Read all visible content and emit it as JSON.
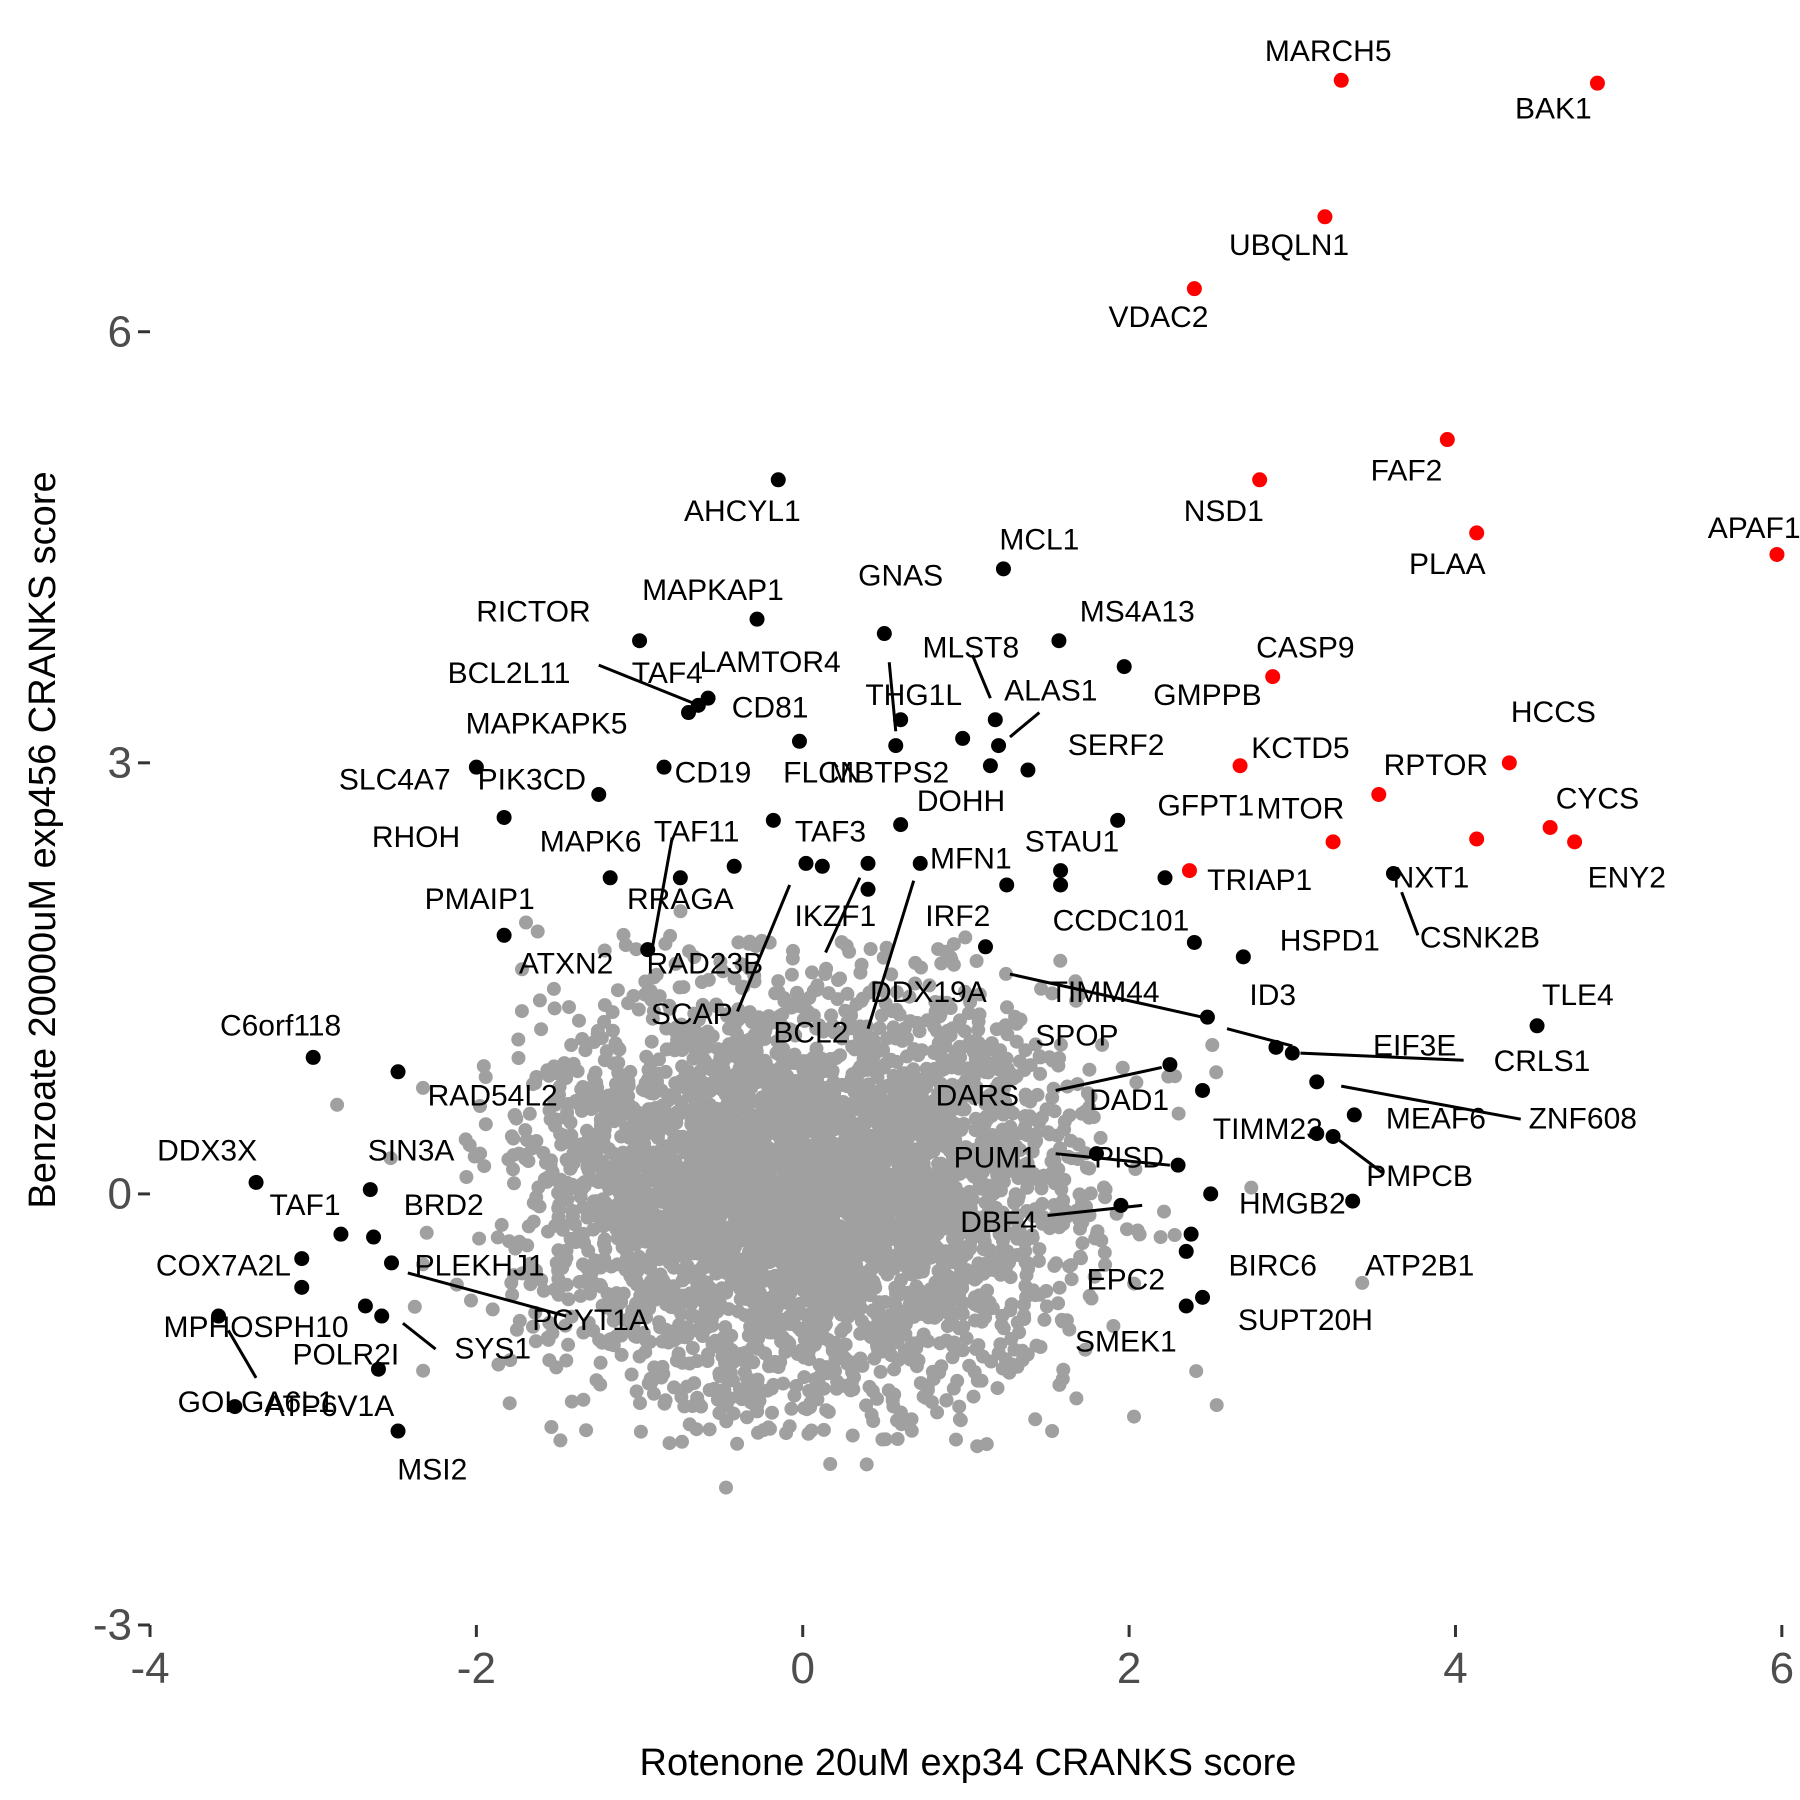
{
  "chart_data": {
    "type": "scatter",
    "title": "",
    "xlabel": "Rotenone 20uM exp34 CRANKS score",
    "ylabel": "Benzoate 20000uM exp456 CRANKS score",
    "xlim": [
      -4,
      6.05
    ],
    "ylim": [
      -3,
      8.1
    ],
    "x_ticks": [
      -4,
      -2,
      0,
      2,
      4,
      6
    ],
    "y_ticks": [
      -3,
      0,
      3,
      6
    ],
    "x_tick_labels": [
      "-4",
      "-2",
      "0",
      "2",
      "4",
      "6"
    ],
    "y_tick_labels": [
      "-3",
      "0",
      "3",
      "6"
    ],
    "grid": false,
    "background_cloud": {
      "color": "#a0a0a0",
      "description_count": 12000,
      "center": [
        0,
        0
      ],
      "sd": [
        0.82,
        0.68
      ]
    },
    "series": [
      {
        "color": "#ff0000",
        "points": [
          {
            "label": "MARCH5",
            "x": 3.3,
            "y": 7.75,
            "lx": 3.22,
            "ly": 7.95
          },
          {
            "label": "BAK1",
            "x": 4.87,
            "y": 7.73,
            "lx": 4.6,
            "ly": 7.55
          },
          {
            "label": "UBQLN1",
            "x": 3.2,
            "y": 6.8,
            "lx": 2.98,
            "ly": 6.6
          },
          {
            "label": "VDAC2",
            "x": 2.4,
            "y": 6.3,
            "lx": 2.18,
            "ly": 6.1
          },
          {
            "label": "FAF2",
            "x": 3.95,
            "y": 5.25,
            "lx": 3.7,
            "ly": 5.03
          },
          {
            "label": "NSD1",
            "x": 2.8,
            "y": 4.97,
            "lx": 2.58,
            "ly": 4.75
          },
          {
            "label": "PLAA",
            "x": 4.13,
            "y": 4.6,
            "lx": 3.95,
            "ly": 4.38
          },
          {
            "label": "APAF1",
            "x": 5.97,
            "y": 4.45,
            "lx": 5.83,
            "ly": 4.63
          },
          {
            "label": "CASP9",
            "x": 2.88,
            "y": 3.6,
            "lx": 3.08,
            "ly": 3.8
          },
          {
            "label": "KCTD5",
            "x": 2.68,
            "y": 2.98,
            "lx": 3.05,
            "ly": 3.1
          },
          {
            "label": "RPTOR",
            "x": 3.53,
            "y": 2.78,
            "lx": 3.88,
            "ly": 2.98
          },
          {
            "label": "HCCS",
            "x": 4.33,
            "y": 3.0,
            "lx": 4.6,
            "ly": 3.35
          },
          {
            "label": "MTOR",
            "x": 3.25,
            "y": 2.45,
            "lx": 3.05,
            "ly": 2.68
          },
          {
            "label": "CYCS",
            "x": 4.58,
            "y": 2.55,
            "lx": 4.87,
            "ly": 2.75
          },
          {
            "label": "ENY2",
            "x": 4.73,
            "y": 2.45,
            "lx": 5.05,
            "ly": 2.2
          },
          {
            "label": "NXT1",
            "x": 4.13,
            "y": 2.47,
            "lx": 3.85,
            "ly": 2.2
          },
          {
            "label": "TRIAP1",
            "x": 2.37,
            "y": 2.25,
            "lx": 2.8,
            "ly": 2.18
          }
        ]
      },
      {
        "color": "#000000",
        "points": [
          {
            "label": "AHCYL1",
            "x": -0.15,
            "y": 4.97,
            "lx": -0.37,
            "ly": 4.75
          },
          {
            "label": "MCL1",
            "x": 1.23,
            "y": 4.35,
            "lx": 1.45,
            "ly": 4.55
          },
          {
            "label": "GNAS",
            "x": 0.5,
            "y": 3.9,
            "lx": 0.6,
            "ly": 4.3
          },
          {
            "label": "MAPKAP1",
            "x": -0.28,
            "y": 4.0,
            "lx": -0.55,
            "ly": 4.2
          },
          {
            "label": "RICTOR",
            "x": -1.0,
            "y": 3.85,
            "lx": -1.65,
            "ly": 4.05
          },
          {
            "label": "MS4A13",
            "x": 1.57,
            "y": 3.85,
            "lx": 2.05,
            "ly": 4.05
          },
          {
            "label": "MLST8",
            "x": 1.18,
            "y": 3.3,
            "lx": 1.03,
            "ly": 3.8,
            "sx": 1.04,
            "sy": 3.75,
            "ex": 1.15,
            "ey": 3.45
          },
          {
            "label": "LAMTOR4",
            "x": 0.57,
            "y": 3.12,
            "lx": -0.2,
            "ly": 3.7,
            "sx": 0.53,
            "sy": 3.7,
            "ex": 0.57,
            "ey": 3.22
          },
          {
            "label": "TAF4",
            "x": -0.58,
            "y": 3.45,
            "lx": -0.83,
            "ly": 3.62
          },
          {
            "label": "BCL2L11",
            "x": -0.64,
            "y": 3.4,
            "lx": -1.8,
            "ly": 3.62,
            "sx": -1.25,
            "sy": 3.68,
            "ex": -0.68,
            "ey": 3.42
          },
          {
            "label": "GMPPB",
            "x": 1.97,
            "y": 3.67,
            "lx": 2.48,
            "ly": 3.47
          },
          {
            "label": "ALAS1",
            "x": 1.2,
            "y": 3.12,
            "lx": 1.52,
            "ly": 3.5,
            "sx": 1.45,
            "sy": 3.35,
            "ex": 1.27,
            "ey": 3.18
          },
          {
            "label": "THG1L",
            "x": 0.6,
            "y": 3.3,
            "lx": 0.68,
            "ly": 3.47
          },
          {
            "label": "CD81",
            "x": -0.7,
            "y": 3.35,
            "lx": -0.2,
            "ly": 3.38
          },
          {
            "label": "MAPKAPK5",
            "x": -0.02,
            "y": 3.15,
            "lx": -1.57,
            "ly": 3.27
          },
          {
            "label": "SERF2",
            "x": 1.38,
            "y": 2.95,
            "lx": 1.92,
            "ly": 3.12
          },
          {
            "label": "MBTPS2",
            "x": 0.98,
            "y": 3.17,
            "lx": 0.53,
            "ly": 2.93
          },
          {
            "label": "FLCN",
            "x": 1.15,
            "y": 2.98,
            "lx": 0.12,
            "ly": 2.93
          },
          {
            "label": "CD19",
            "x": -0.85,
            "y": 2.97,
            "lx": -0.55,
            "ly": 2.93
          },
          {
            "label": "SLC4A7",
            "x": -2.0,
            "y": 2.97,
            "lx": -2.5,
            "ly": 2.88
          },
          {
            "label": "PIK3CD",
            "x": -1.25,
            "y": 2.78,
            "lx": -1.66,
            "ly": 2.88
          },
          {
            "label": "DOHH",
            "x": 0.6,
            "y": 2.57,
            "lx": 0.97,
            "ly": 2.73
          },
          {
            "label": "GFPT1",
            "x": 1.93,
            "y": 2.6,
            "lx": 2.47,
            "ly": 2.7
          },
          {
            "label": "RHOH",
            "x": -1.83,
            "y": 2.62,
            "lx": -2.37,
            "ly": 2.48
          },
          {
            "label": "TAF11",
            "x": -0.75,
            "y": 2.2,
            "lx": -0.65,
            "ly": 2.52,
            "sx": -0.93,
            "sy": 1.66,
            "ex": -0.8,
            "ey": 2.48
          },
          {
            "label": "TAF3",
            "x": -0.18,
            "y": 2.6,
            "lx": 0.17,
            "ly": 2.52
          },
          {
            "label": "MAPK6",
            "x": -1.18,
            "y": 2.2,
            "lx": -1.3,
            "ly": 2.45
          },
          {
            "label": "STAU1",
            "x": 1.58,
            "y": 2.25,
            "lx": 1.65,
            "ly": 2.45
          },
          {
            "label": "MFN1",
            "x": 0.72,
            "y": 2.3,
            "lx": 1.03,
            "ly": 2.33
          },
          {
            "label": "PMAIP1",
            "x": -1.83,
            "y": 1.8,
            "lx": -1.98,
            "ly": 2.05
          },
          {
            "label": "RRAGA",
            "x": -0.42,
            "y": 2.28,
            "lx": -0.75,
            "ly": 2.05
          },
          {
            "label": "IKZF1",
            "x": 0.4,
            "y": 2.3,
            "lx": 0.2,
            "ly": 1.93,
            "sx": 0.14,
            "sy": 1.68,
            "ex": 0.35,
            "ey": 2.2
          },
          {
            "label": "IRF2",
            "x": 1.25,
            "y": 2.15,
            "lx": 0.95,
            "ly": 1.93
          },
          {
            "label": "CCDC101",
            "x": 1.58,
            "y": 2.15,
            "lx": 1.95,
            "ly": 1.9
          },
          {
            "label": "HSPD1",
            "x": 2.4,
            "y": 1.75,
            "lx": 3.23,
            "ly": 1.76
          },
          {
            "label": "CSNK2B",
            "x": 3.62,
            "y": 2.23,
            "lx": 4.15,
            "ly": 1.78,
            "sx": 3.77,
            "sy": 1.8,
            "ex": 3.67,
            "ey": 2.1
          },
          {
            "label": "ATXN2",
            "x": -0.95,
            "y": 1.7,
            "lx": -1.45,
            "ly": 1.6
          },
          {
            "label": "RAD23B",
            "x": 0.12,
            "y": 2.28,
            "lx": -0.6,
            "ly": 1.6
          },
          {
            "label": "DDX19A",
            "x": 1.12,
            "y": 1.72,
            "lx": 0.77,
            "ly": 1.4,
            "sx": 1.27,
            "sy": 1.53,
            "ex": 2.45,
            "ey": 1.23
          },
          {
            "label": "TIMM44",
            "x": 2.22,
            "y": 2.2,
            "lx": 1.85,
            "ly": 1.4
          },
          {
            "label": "ID3",
            "x": 2.7,
            "y": 1.65,
            "lx": 2.88,
            "ly": 1.38
          },
          {
            "label": "TLE4",
            "x": 4.5,
            "y": 1.17,
            "lx": 4.75,
            "ly": 1.38
          },
          {
            "label": "SCAP",
            "x": 0.02,
            "y": 2.3,
            "lx": -0.68,
            "ly": 1.25,
            "sx": -0.4,
            "sy": 1.27,
            "ex": -0.08,
            "ey": 2.15
          },
          {
            "label": "BCL2",
            "x": 0.4,
            "y": 2.12,
            "lx": 0.05,
            "ly": 1.12,
            "sx": 0.4,
            "sy": 1.15,
            "ex": 0.68,
            "ey": 2.18
          },
          {
            "label": "SPOP",
            "x": 2.48,
            "y": 1.23,
            "lx": 1.68,
            "ly": 1.1
          },
          {
            "label": "EIF3E",
            "x": 2.9,
            "y": 1.02,
            "lx": 3.75,
            "ly": 1.03,
            "sx": 3.0,
            "sy": 1.03,
            "ex": 2.6,
            "ey": 1.15
          },
          {
            "label": "CRLS1",
            "x": 3.0,
            "y": 0.98,
            "lx": 4.53,
            "ly": 0.92,
            "sx": 4.05,
            "sy": 0.93,
            "ex": 3.05,
            "ey": 0.98
          },
          {
            "label": "DARS",
            "x": 2.25,
            "y": 0.9,
            "lx": 1.07,
            "ly": 0.68,
            "sx": 1.55,
            "sy": 0.72,
            "ex": 2.2,
            "ey": 0.88
          },
          {
            "label": "DAD1",
            "x": 2.45,
            "y": 0.72,
            "lx": 2.0,
            "ly": 0.65
          },
          {
            "label": "ZNF608",
            "x": 3.15,
            "y": 0.78,
            "lx": 4.78,
            "ly": 0.52,
            "sx": 4.4,
            "sy": 0.52,
            "ex": 3.3,
            "ey": 0.75
          },
          {
            "label": "MEAF6",
            "x": 3.38,
            "y": 0.55,
            "lx": 3.88,
            "ly": 0.52
          },
          {
            "label": "TIMM23",
            "x": 3.15,
            "y": 0.42,
            "lx": 2.85,
            "ly": 0.45
          },
          {
            "label": "PUM1",
            "x": 1.8,
            "y": 0.28,
            "lx": 1.18,
            "ly": 0.25,
            "sx": 1.55,
            "sy": 0.28,
            "ex": 2.25,
            "ey": 0.2
          },
          {
            "label": "PISD",
            "x": 2.3,
            "y": 0.2,
            "lx": 2.0,
            "ly": 0.25
          },
          {
            "label": "PMPCB",
            "x": 3.25,
            "y": 0.4,
            "lx": 3.78,
            "ly": 0.12,
            "sx": 3.55,
            "sy": 0.15,
            "ex": 3.28,
            "ey": 0.38
          },
          {
            "label": "HMGB2",
            "x": 2.5,
            "y": 0.0,
            "lx": 3.0,
            "ly": -0.07
          },
          {
            "label": "DBF4",
            "x": 1.95,
            "y": -0.08,
            "lx": 1.2,
            "ly": -0.2,
            "sx": 1.5,
            "sy": -0.15,
            "ex": 2.08,
            "ey": -0.08
          },
          {
            "label": "ATP2B1",
            "x": 3.37,
            "y": -0.05,
            "lx": 3.78,
            "ly": -0.5
          },
          {
            "label": "BIRC6",
            "x": 2.38,
            "y": -0.28,
            "lx": 2.88,
            "ly": -0.5
          },
          {
            "label": "EPC2",
            "x": 2.35,
            "y": -0.4,
            "lx": 1.98,
            "ly": -0.6
          },
          {
            "label": "SUPT20H",
            "x": 2.45,
            "y": -0.72,
            "lx": 3.08,
            "ly": -0.88
          },
          {
            "label": "SMEK1",
            "x": 2.35,
            "y": -0.78,
            "lx": 1.98,
            "ly": -1.03
          },
          {
            "label": "C6orf118",
            "x": -3.0,
            "y": 0.95,
            "lx": -3.2,
            "ly": 1.17
          },
          {
            "label": "RAD54L2",
            "x": -2.48,
            "y": 0.85,
            "lx": -1.9,
            "ly": 0.68
          },
          {
            "label": "DDX3X",
            "x": -3.35,
            "y": 0.08,
            "lx": -3.65,
            "ly": 0.3
          },
          {
            "label": "SIN3A",
            "x": -2.65,
            "y": 0.03,
            "lx": -2.4,
            "ly": 0.3
          },
          {
            "label": "TAF1",
            "x": -2.83,
            "y": -0.28,
            "lx": -3.05,
            "ly": -0.08
          },
          {
            "label": "BRD2",
            "x": -2.63,
            "y": -0.3,
            "lx": -2.2,
            "ly": -0.08
          },
          {
            "label": "COX7A2L",
            "x": -3.07,
            "y": -0.45,
            "lx": -3.55,
            "ly": -0.5
          },
          {
            "label": "PLEKHJ1",
            "x": -2.52,
            "y": -0.48,
            "lx": -1.98,
            "ly": -0.5
          },
          {
            "label": "MPHOSPH10",
            "x": -3.58,
            "y": -0.85,
            "lx": -3.35,
            "ly": -0.93,
            "sx": -3.52,
            "sy": -0.95,
            "ex": -3.35,
            "ey": -1.28
          },
          {
            "label": "POLR2I",
            "x": -3.07,
            "y": -0.65,
            "lx": -2.8,
            "ly": -1.12
          },
          {
            "label": "PCYT1A",
            "x": -2.68,
            "y": -0.78,
            "lx": -1.3,
            "ly": -0.88,
            "sx": -1.45,
            "sy": -0.85,
            "ex": -2.42,
            "ey": -0.55
          },
          {
            "label": "SYS1",
            "x": -2.58,
            "y": -0.85,
            "lx": -1.9,
            "ly": -1.08,
            "sx": -2.25,
            "sy": -1.08,
            "ex": -2.45,
            "ey": -0.9
          },
          {
            "label": "GOLGA6L1",
            "x": -3.48,
            "y": -1.48,
            "lx": -3.35,
            "ly": -1.45
          },
          {
            "label": "ATP6V1A",
            "x": -2.6,
            "y": -1.22,
            "lx": -2.9,
            "ly": -1.48
          },
          {
            "label": "MSI2",
            "x": -2.48,
            "y": -1.65,
            "lx": -2.27,
            "ly": -1.92
          }
        ]
      }
    ]
  }
}
